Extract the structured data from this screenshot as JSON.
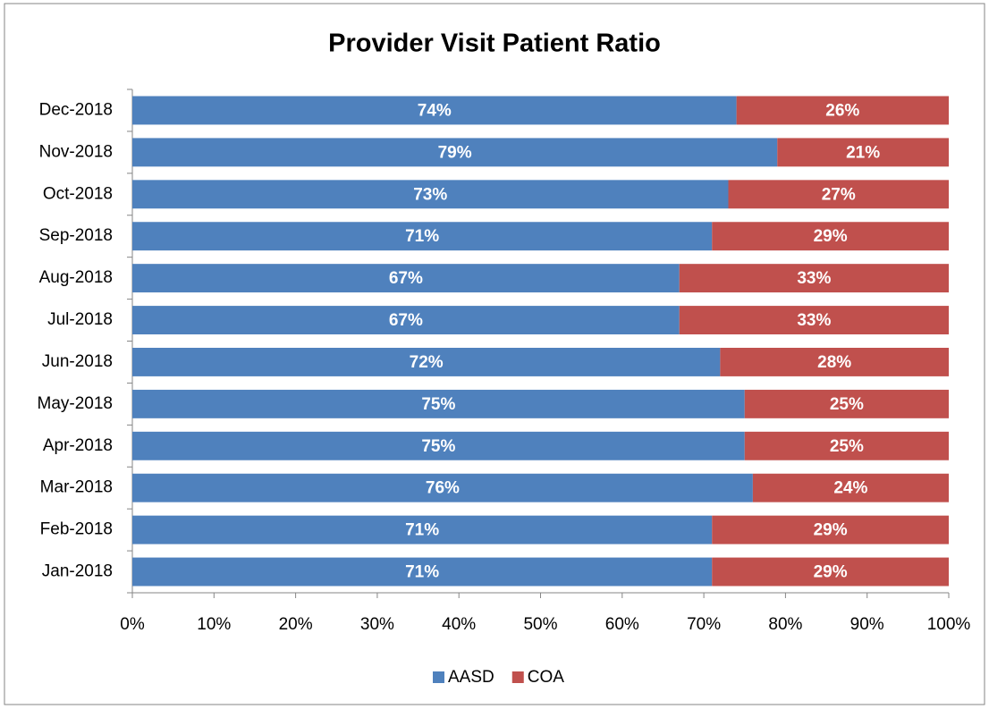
{
  "chart_data": {
    "type": "stacked_barh",
    "title": "Provider Visit Patient Ratio",
    "categories": [
      "Jan-2018",
      "Feb-2018",
      "Mar-2018",
      "Apr-2018",
      "May-2018",
      "Jun-2018",
      "Jul-2018",
      "Aug-2018",
      "Sep-2018",
      "Oct-2018",
      "Nov-2018",
      "Dec-2018"
    ],
    "series": [
      {
        "name": "AASD",
        "color": "#4f81bd",
        "values": [
          71,
          71,
          76,
          75,
          75,
          72,
          67,
          67,
          71,
          73,
          79,
          74
        ],
        "value_labels": [
          "71%",
          "71%",
          "76%",
          "75%",
          "75%",
          "72%",
          "67%",
          "67%",
          "71%",
          "73%",
          "79%",
          "74%"
        ]
      },
      {
        "name": "COA",
        "color": "#c0504d",
        "values": [
          29,
          29,
          24,
          25,
          25,
          28,
          33,
          33,
          29,
          27,
          21,
          26
        ],
        "value_labels": [
          "29%",
          "29%",
          "24%",
          "25%",
          "25%",
          "28%",
          "33%",
          "33%",
          "29%",
          "27%",
          "21%",
          "26%"
        ]
      }
    ],
    "xlim": [
      0,
      100
    ],
    "xticks": [
      {
        "value": 0,
        "label": "0%"
      },
      {
        "value": 10,
        "label": "10%"
      },
      {
        "value": 20,
        "label": "20%"
      },
      {
        "value": 30,
        "label": "30%"
      },
      {
        "value": 40,
        "label": "40%"
      },
      {
        "value": 50,
        "label": "50%"
      },
      {
        "value": 60,
        "label": "60%"
      },
      {
        "value": 70,
        "label": "70%"
      },
      {
        "value": 80,
        "label": "80%"
      },
      {
        "value": 90,
        "label": "90%"
      },
      {
        "value": 100,
        "label": "100%"
      }
    ],
    "legend": "bottom"
  }
}
